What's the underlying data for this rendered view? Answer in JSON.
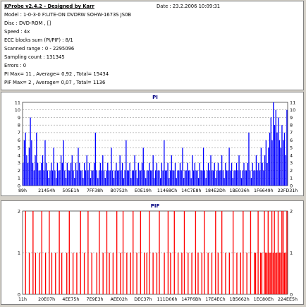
{
  "header": {
    "title": "KProbe v2.4.2 - Designed by Karr",
    "date": "Date : 23.2.2006 10:09:31"
  },
  "info_lines": [
    "Model : 1-0-3-0 F:LITE-ON DVDRW SOHW-1673S JS0B",
    "Disc : DVD-ROM , []",
    "Speed : 4x",
    "ECC blocks sum (PI/PIF) : 8/1",
    "Scanned range : 0 - 2295096",
    "Sampling count : 131345",
    "Errors : 0",
    "PI Max= 11 , Average= 0,92 , Total= 15434",
    "PIF Max= 2 , Average= 0,07 , Total= 1136"
  ],
  "colors": {
    "pi_bar": "#0000ff",
    "pif_bar": "#ff0000",
    "grid": "#808080",
    "chart_title": "#000080"
  },
  "chart_data": [
    {
      "type": "bar",
      "title": "PI",
      "xlabel": "",
      "ylabel": "",
      "ylim": [
        0,
        11
      ],
      "y_ticks": [
        0,
        1,
        2,
        3,
        4,
        5,
        6,
        7,
        8,
        9,
        10,
        11
      ],
      "x_tick_labels": [
        "89h",
        "21454h",
        "505E1h",
        "7FF38h",
        "B0752h",
        "E0E19h",
        "11468Ch",
        "14C7E8h",
        "184E2Dh",
        "1BE036h",
        "1F6649h",
        "22FD31h"
      ],
      "grid": true,
      "series": [
        {
          "values": [
            3,
            6,
            7,
            4,
            3,
            5,
            9,
            6,
            3,
            2,
            4,
            7,
            3,
            2,
            2,
            3,
            4,
            2,
            6,
            3,
            2,
            1,
            2,
            3,
            2,
            5,
            2,
            1,
            3,
            2,
            2,
            4,
            3,
            6,
            2,
            1,
            3,
            2,
            2,
            3,
            4,
            2,
            1,
            3,
            2,
            5,
            3,
            2,
            2,
            1,
            3,
            2,
            4,
            2,
            3,
            1,
            2,
            2,
            3,
            7,
            2,
            1,
            2,
            3,
            2,
            4,
            2,
            1,
            2,
            3,
            2,
            2,
            5,
            2,
            1,
            2,
            3,
            2,
            2,
            4,
            2,
            3,
            1,
            2,
            6,
            2,
            2,
            3,
            1,
            2,
            2,
            4,
            2,
            1,
            3,
            2,
            2,
            3,
            5,
            2,
            1,
            2,
            2,
            3,
            2,
            2,
            4,
            1,
            2,
            3,
            2,
            2,
            1,
            3,
            2,
            6,
            2,
            2,
            3,
            1,
            2,
            4,
            2,
            2,
            3,
            1,
            2,
            2,
            3,
            2,
            5,
            1,
            2,
            2,
            3,
            2,
            2,
            1,
            4,
            2,
            3,
            2,
            2,
            1,
            3,
            2,
            2,
            5,
            2,
            1,
            2,
            3,
            2,
            4,
            2,
            2,
            3,
            1,
            2,
            3,
            2,
            2,
            4,
            2,
            1,
            3,
            2,
            2,
            5,
            2,
            3,
            1,
            2,
            2,
            3,
            2,
            4,
            2,
            1,
            2,
            3,
            2,
            2,
            3,
            7,
            2,
            1,
            3,
            2,
            2,
            4,
            2,
            3,
            2,
            5,
            3,
            2,
            4,
            6,
            3,
            5,
            7,
            9,
            6,
            11,
            8,
            10,
            7,
            9,
            6,
            5,
            8,
            6,
            7,
            4,
            10
          ]
        }
      ]
    },
    {
      "type": "bar",
      "title": "PIF",
      "xlabel": "",
      "ylabel": "",
      "ylim": [
        0,
        2
      ],
      "y_ticks": [
        0,
        1,
        2
      ],
      "x_tick_labels": [
        "11h",
        "20E07h",
        "4EE75h",
        "7E9E3h",
        "AEE02h",
        "DEC37h",
        "111D06h",
        "147F6Bh",
        "17E4ECh",
        "1B5662h",
        "1EC80Eh",
        "224EE5h"
      ],
      "grid": true,
      "series": [
        {
          "values": [
            0,
            0,
            2,
            0,
            0,
            1,
            0,
            0,
            2,
            0,
            1,
            0,
            0,
            1,
            0,
            2,
            0,
            0,
            1,
            0,
            0,
            2,
            0,
            1,
            0,
            0,
            1,
            0,
            0,
            2,
            0,
            1,
            0,
            0,
            0,
            1,
            0,
            2,
            0,
            0,
            1,
            0,
            0,
            1,
            0,
            0,
            2,
            0,
            0,
            1,
            0,
            0,
            2,
            0,
            0,
            1,
            0,
            0,
            0,
            1,
            0,
            2,
            0,
            0,
            1,
            0,
            0,
            2,
            0,
            1,
            0,
            0,
            1,
            0,
            0,
            2,
            0,
            0,
            1,
            0,
            2,
            0,
            0,
            1,
            0,
            0,
            1,
            0,
            2,
            0,
            0,
            1,
            0,
            0,
            2,
            0,
            0,
            1,
            0,
            1,
            0,
            2,
            0,
            0,
            1,
            0,
            0,
            1,
            0,
            2,
            0,
            0,
            0,
            1,
            0,
            0,
            2,
            0,
            1,
            0,
            0,
            2,
            0,
            0,
            1,
            0,
            0,
            1,
            0,
            2,
            0,
            0,
            1,
            0,
            0,
            1,
            0,
            0,
            2,
            0,
            1,
            0,
            0,
            1,
            0,
            2,
            0,
            0,
            1,
            0,
            0,
            1,
            0,
            0,
            2,
            0,
            1,
            0,
            0,
            2,
            0,
            0,
            1,
            0,
            0,
            1,
            0,
            0,
            2,
            0,
            0,
            1,
            0,
            0,
            1,
            0,
            2,
            0,
            0,
            1,
            0,
            0,
            2,
            0,
            0,
            1,
            1,
            0,
            2,
            0,
            1,
            1,
            0,
            2,
            1,
            1,
            2,
            1,
            1,
            2,
            1,
            2,
            1,
            1,
            2,
            1,
            1,
            2,
            2,
            1,
            1,
            2
          ]
        }
      ]
    }
  ]
}
